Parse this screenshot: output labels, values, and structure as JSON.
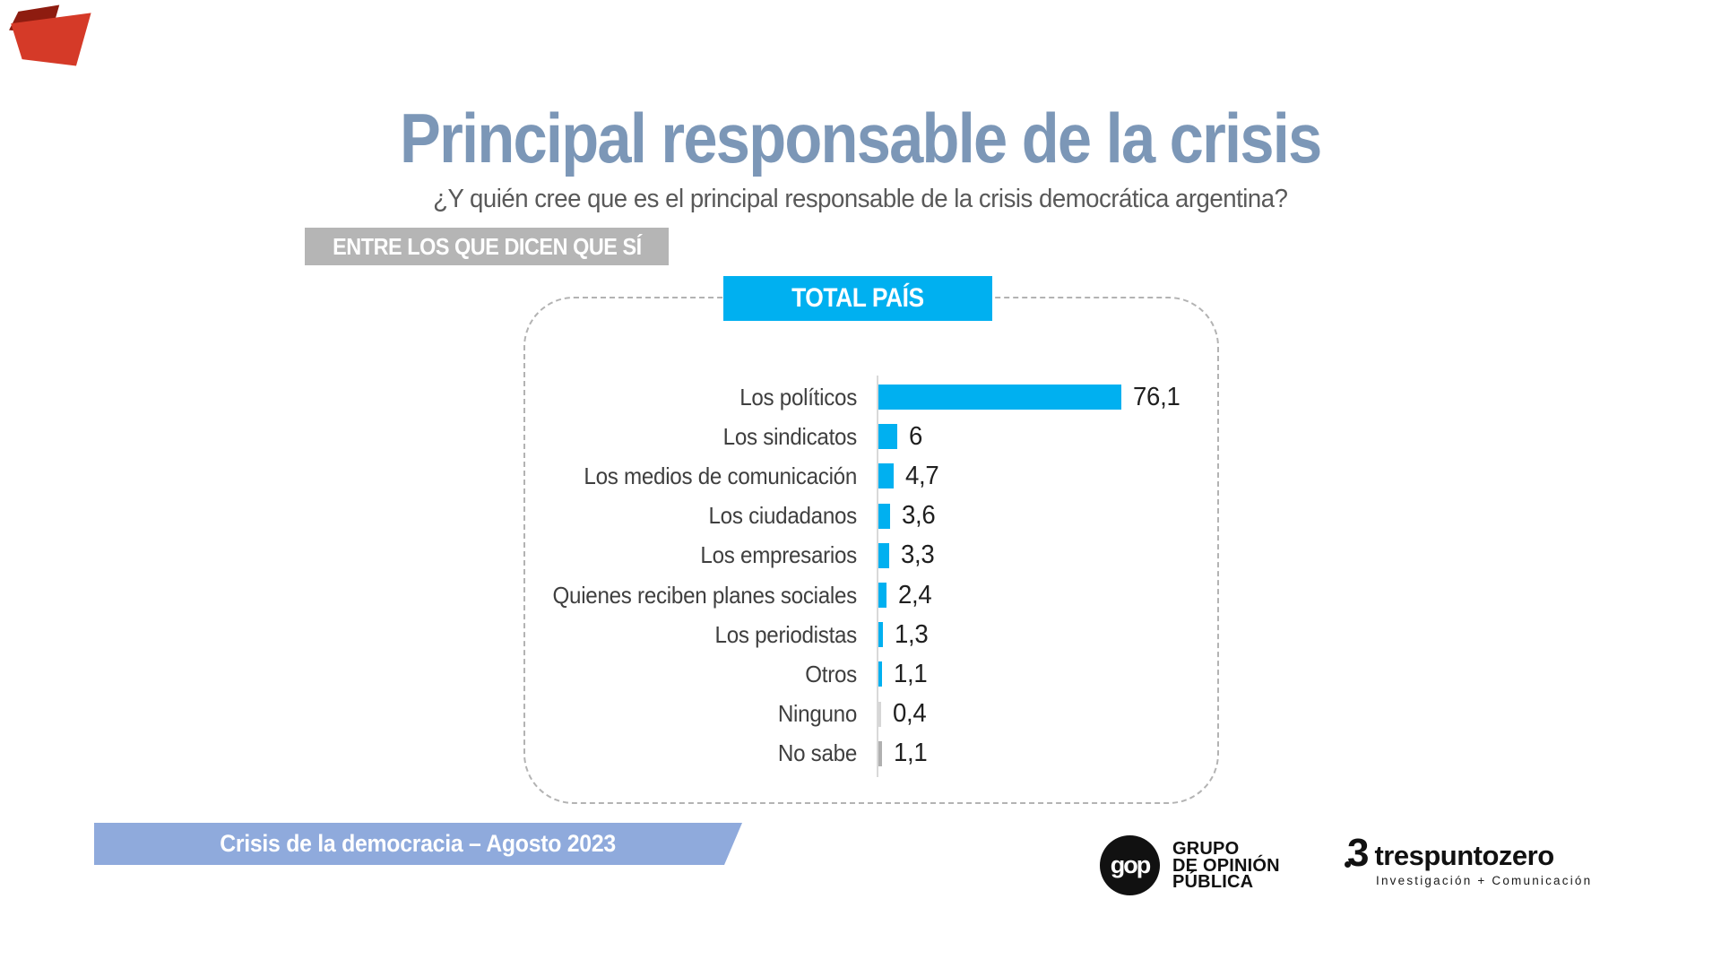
{
  "theme": {
    "accent_cyan": "#00b0f0",
    "title_blue": "#7c97b7",
    "banner_blue": "#8faadc",
    "badge_gray": "#b5b5b5",
    "subtitle_gray": "#595959",
    "label_gray": "#3f3f3f",
    "value_dark": "#1f1f1f",
    "axis_gray": "#d9d9d9",
    "dash_gray": "#b3b3b3",
    "flag_red_dark": "#8e1c10",
    "flag_red": "#d53a28"
  },
  "header": {
    "title": "Principal responsable de la crisis",
    "subtitle": "¿Y quién cree que es el principal responsable de la crisis democrática argentina?",
    "filter_badge": "ENTRE LOS QUE DICEN QUE SÍ"
  },
  "chart_data": {
    "type": "bar",
    "orientation": "horizontal",
    "title": "TOTAL PAÍS",
    "categories": [
      "Los políticos",
      "Los sindicatos",
      "Los medios de comunicación",
      "Los ciudadanos",
      "Los empresarios",
      "Quienes reciben planes sociales",
      "Los periodistas",
      "Otros",
      "Ninguno",
      "No sabe"
    ],
    "values": [
      76.1,
      6,
      4.7,
      3.6,
      3.3,
      2.4,
      1.3,
      1.1,
      0.4,
      1.1
    ],
    "value_labels": [
      "76,1",
      "6",
      "4,7",
      "3,6",
      "3,3",
      "2,4",
      "1,3",
      "1,1",
      "0,4",
      "1,1"
    ],
    "bar_color_default": "#00b0f0",
    "bar_color_overrides": {
      "8": "#d6d6d6",
      "9": "#b0b0b0"
    },
    "xlim": [
      0,
      100
    ],
    "grid": false,
    "legend": false
  },
  "footer": {
    "banner_text": "Crisis de la democracia – Agosto 2023",
    "gop_logo": {
      "monogram": "gop",
      "lines": [
        "GRUPO",
        "DE OPINIÓN",
        "PÚBLICA"
      ]
    },
    "trespuntozero_logo": {
      "mark": "3",
      "wordmark": "trespuntozero",
      "tagline": "Investigación + Comunicación"
    }
  }
}
